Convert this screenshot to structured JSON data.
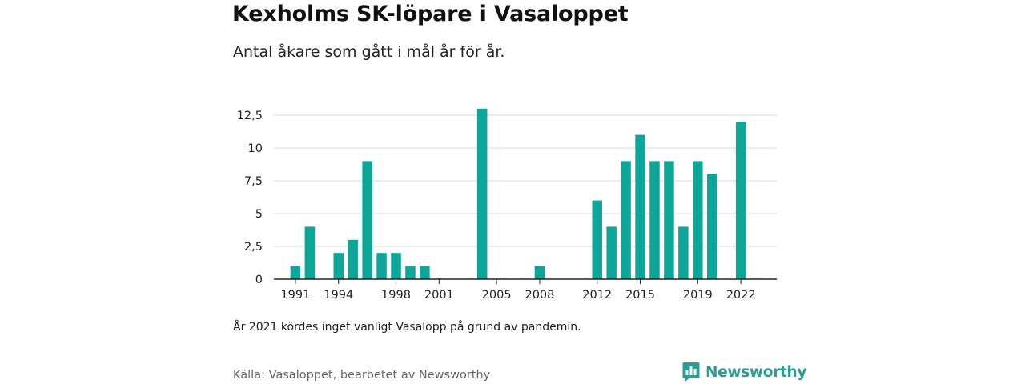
{
  "header": {
    "title": "Kexholms SK-löpare i Vasaloppet",
    "subtitle": "Antal åkare som gått i mål år för år."
  },
  "footer": {
    "note": "År 2021 kördes inget vanligt Vasalopp på grund av pandemin.",
    "source": "Källa: Vasaloppet, bearbetet av Newsworthy",
    "brand": "Newsworthy",
    "brand_icon": "newsworthy-logo-icon"
  },
  "colors": {
    "bar": "#0ea698",
    "grid": "#d9d9d9",
    "axis": "#222222",
    "brand": "#2d9c90"
  },
  "chart_data": {
    "type": "bar",
    "title": "Kexholms SK-löpare i Vasaloppet",
    "subtitle": "Antal åkare som gått i mål år för år.",
    "xlabel": "",
    "ylabel": "",
    "x": [
      1991,
      1992,
      1993,
      1994,
      1995,
      1996,
      1997,
      1998,
      1999,
      2000,
      2001,
      2002,
      2003,
      2004,
      2005,
      2006,
      2007,
      2008,
      2009,
      2010,
      2011,
      2012,
      2013,
      2014,
      2015,
      2016,
      2017,
      2018,
      2019,
      2020,
      2021,
      2022
    ],
    "values": [
      1,
      4,
      0,
      2,
      3,
      9,
      2,
      2,
      1,
      1,
      0,
      0,
      0,
      13,
      0,
      0,
      0,
      1,
      0,
      0,
      0,
      6,
      4,
      9,
      11,
      9,
      9,
      4,
      9,
      8,
      0,
      12
    ],
    "x_tick_labels": [
      "1991",
      "1994",
      "1998",
      "2001",
      "2005",
      "2008",
      "2012",
      "2015",
      "2019",
      "2022"
    ],
    "y_ticks": [
      0,
      2.5,
      5,
      7.5,
      10,
      12.5
    ],
    "y_tick_labels": [
      "0",
      "2,5",
      "5",
      "7,5",
      "10",
      "12,5"
    ],
    "ylim": [
      0,
      13
    ],
    "xlim": [
      1989.5,
      2024.5
    ],
    "grid": true,
    "legend": "none"
  }
}
